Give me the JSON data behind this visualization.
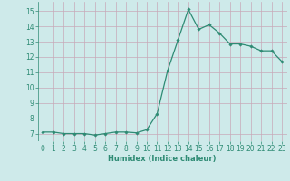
{
  "x": [
    0,
    1,
    2,
    3,
    4,
    5,
    6,
    7,
    8,
    9,
    10,
    11,
    12,
    13,
    14,
    15,
    16,
    17,
    18,
    19,
    20,
    21,
    22,
    23
  ],
  "y": [
    7.1,
    7.1,
    7.0,
    7.0,
    7.0,
    6.9,
    7.0,
    7.1,
    7.1,
    7.05,
    7.25,
    8.3,
    11.1,
    13.1,
    15.1,
    13.8,
    14.1,
    13.55,
    12.85,
    12.85,
    12.7,
    12.4,
    12.4,
    11.7
  ],
  "line_color": "#2e8b74",
  "marker": "D",
  "markersize": 1.8,
  "linewidth": 0.9,
  "bg_color": "#ceeaea",
  "grid_color": "#c8a8b8",
  "xlabel": "Humidex (Indice chaleur)",
  "xlabel_fontsize": 6.0,
  "ylim": [
    6.5,
    15.6
  ],
  "xlim": [
    -0.5,
    23.5
  ],
  "yticks": [
    7,
    8,
    9,
    10,
    11,
    12,
    13,
    14,
    15
  ],
  "xticks": [
    0,
    1,
    2,
    3,
    4,
    5,
    6,
    7,
    8,
    9,
    10,
    11,
    12,
    13,
    14,
    15,
    16,
    17,
    18,
    19,
    20,
    21,
    22,
    23
  ],
  "tick_fontsize": 5.5,
  "tick_color": "#2e8b74"
}
